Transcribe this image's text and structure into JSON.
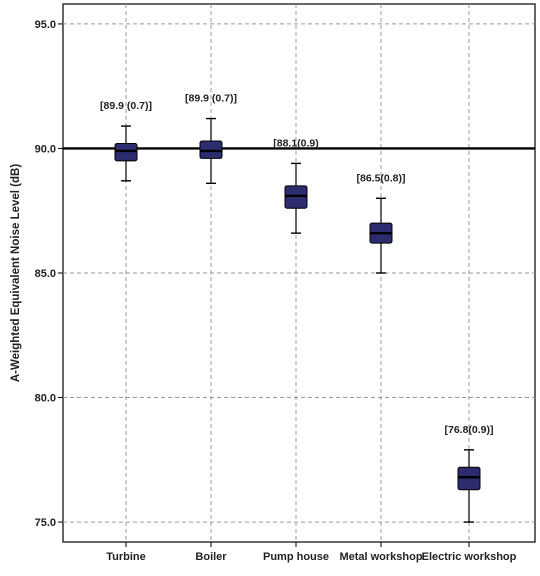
{
  "chart_data": {
    "type": "box",
    "title": "",
    "xlabel": "",
    "ylabel": "A-Weighted Equivalent Noise Level (dB)",
    "ylim": [
      74.2,
      95.8
    ],
    "yticks": [
      75.0,
      80.0,
      85.0,
      90.0,
      95.0
    ],
    "ytick_labels": [
      "75.0",
      "80.0",
      "85.0",
      "90.0",
      "95.0"
    ],
    "reference_line": 90.0,
    "grid": "dashed",
    "box_color": "#2c2c6e",
    "median_color": "#000000",
    "categories": [
      "Turbine",
      "Boiler",
      "Pump house",
      "Metal workshop",
      "Electric workshop"
    ],
    "boxes": [
      {
        "min": 88.7,
        "q1": 89.5,
        "median": 89.9,
        "q3": 90.2,
        "max": 90.9
      },
      {
        "min": 88.6,
        "q1": 89.6,
        "median": 89.9,
        "q3": 90.3,
        "max": 91.2
      },
      {
        "min": 86.6,
        "q1": 87.6,
        "median": 88.1,
        "q3": 88.5,
        "max": 89.4
      },
      {
        "min": 85.0,
        "q1": 86.2,
        "median": 86.6,
        "q3": 87.0,
        "max": 88.0
      },
      {
        "min": 75.0,
        "q1": 76.3,
        "median": 76.8,
        "q3": 77.2,
        "max": 77.9
      }
    ],
    "annotations": [
      "[89.9 (0.7)]",
      "[89.9 (0.7)]",
      "[88.1(0.9)",
      "[86.5(0.8)]",
      "[76.8(0.9)]"
    ]
  }
}
